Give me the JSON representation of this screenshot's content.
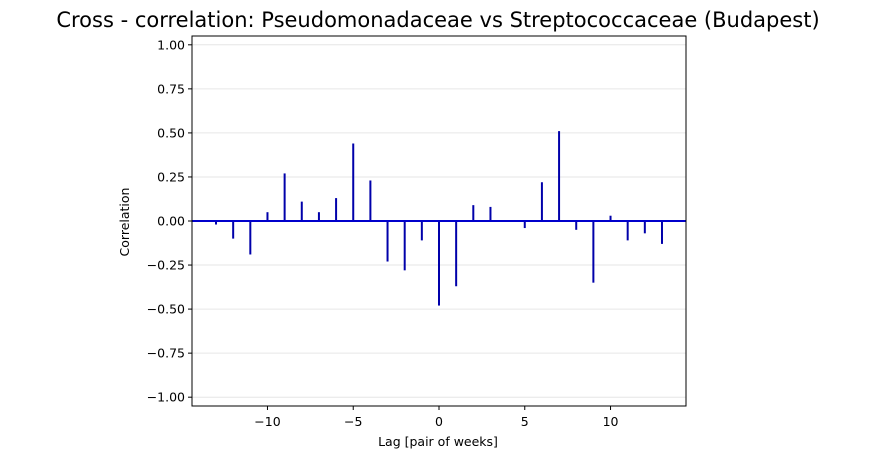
{
  "chart_data": {
    "type": "bar",
    "title": "Cross - correlation: Pseudomonadaceae vs Streptococcaceae (Budapest)",
    "xlabel": "Lag [pair of weeks]",
    "ylabel": "Correlation",
    "xlim": [
      -14.4,
      14.4
    ],
    "ylim": [
      -1.05,
      1.05
    ],
    "x_ticks": [
      -10,
      -5,
      0,
      5,
      10
    ],
    "x_tick_labels": [
      "−10",
      "−5",
      "0",
      "5",
      "10"
    ],
    "y_ticks": [
      -1.0,
      -0.75,
      -0.5,
      -0.25,
      0.0,
      0.25,
      0.5,
      0.75,
      1.0
    ],
    "y_tick_labels": [
      "−1.00",
      "−0.75",
      "−0.50",
      "−0.25",
      "0.00",
      "0.25",
      "0.50",
      "0.75",
      "1.00"
    ],
    "grid": "horizontal",
    "series_color": "#0000aa",
    "zero_line_color": "#0000cc",
    "x": [
      -13,
      -12,
      -11,
      -10,
      -9,
      -8,
      -7,
      -6,
      -5,
      -4,
      -3,
      -2,
      -1,
      0,
      1,
      2,
      3,
      4,
      5,
      6,
      7,
      8,
      9,
      10,
      11,
      12,
      13
    ],
    "values": [
      -0.02,
      -0.1,
      -0.19,
      0.05,
      0.27,
      0.11,
      0.05,
      0.13,
      0.44,
      0.23,
      -0.23,
      -0.28,
      -0.11,
      -0.48,
      -0.37,
      0.09,
      0.08,
      0.0,
      -0.04,
      0.22,
      0.51,
      -0.05,
      -0.35,
      0.03,
      -0.11,
      -0.07,
      -0.13
    ]
  }
}
